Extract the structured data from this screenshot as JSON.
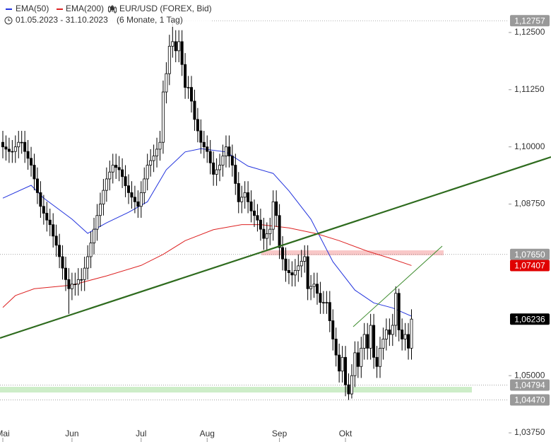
{
  "chart_data": {
    "type": "candlestick",
    "title": "EUR/USD (FOREX, Bid)",
    "period": "01.05.2023 - 31.10.2023",
    "subtitle": "(6 Monate, 1 Tag)",
    "up_color": "#ffffff",
    "down_color": "#000000",
    "xlim": [
      0,
      130
    ],
    "xticks": [
      {
        "value": 0,
        "label": "Mai"
      },
      {
        "value": 22,
        "label": "Jun"
      },
      {
        "value": 44,
        "label": "Jul"
      },
      {
        "value": 65,
        "label": "Aug"
      },
      {
        "value": 88,
        "label": "Sep"
      },
      {
        "value": 109,
        "label": "Okt"
      }
    ],
    "ylim": [
      1.0355,
      1.1321
    ],
    "yticks": [
      {
        "value": 1.125,
        "label": "1,12500"
      },
      {
        "value": 1.1125,
        "label": "1,11250"
      },
      {
        "value": 1.1,
        "label": "1,10000"
      },
      {
        "value": 1.0875,
        "label": "1,08750"
      },
      {
        "value": 1.05,
        "label": "1,05000"
      },
      {
        "value": 1.0375,
        "label": "1,03750"
      }
    ],
    "open": [
      1.101,
      1.1,
      1.0995,
      1.099,
      1.099,
      1.1,
      1.101,
      1.101,
      1.099,
      1.0975,
      1.096,
      1.093,
      1.09,
      1.087,
      1.0855,
      1.084,
      1.083,
      1.0805,
      1.0785,
      1.076,
      1.0735,
      1.071,
      1.069,
      1.07,
      1.07,
      1.071,
      1.071,
      1.0735,
      1.076,
      1.079,
      1.082,
      1.085,
      1.0875,
      1.0905,
      1.093,
      1.0945,
      1.096,
      1.0955,
      1.095,
      1.0935,
      1.0915,
      1.09,
      1.089,
      1.088,
      1.087,
      1.09,
      1.093,
      1.096,
      1.097,
      1.098,
      1.0995,
      1.101,
      1.112,
      1.116,
      1.122,
      1.123,
      1.121,
      1.123,
      1.118,
      1.113,
      1.113,
      1.11,
      1.106,
      1.1035,
      1.101,
      1.1,
      1.099,
      1.0965,
      1.094,
      1.095,
      1.096,
      1.098,
      1.1,
      1.098,
      1.096,
      1.092,
      1.088,
      1.089,
      1.09,
      1.088,
      1.086,
      1.085,
      1.084,
      1.082,
      1.08,
      1.081,
      1.082,
      1.088,
      1.085,
      1.078,
      1.0755,
      1.073,
      1.0725,
      1.072,
      1.073,
      1.074,
      1.075,
      1.076,
      1.069,
      1.0695,
      1.07,
      1.068,
      1.066,
      1.066,
      1.066,
      1.062,
      1.058,
      1.0545,
      1.051,
      1.054,
      1.048,
      1.046,
      1.05,
      1.055,
      1.052,
      1.056,
      1.059,
      1.056,
      1.061,
      1.054,
      1.052,
      1.056,
      1.058,
      1.06,
      1.059,
      1.061,
      1.068,
      1.06,
      1.058,
      1.059,
      1.056
    ],
    "high": [
      1.1035,
      1.1025,
      1.102,
      1.1015,
      1.1025,
      1.1035,
      1.1035,
      1.1035,
      1.1015,
      1.1,
      1.0985,
      1.0955,
      1.0925,
      1.0895,
      1.088,
      1.0865,
      1.0855,
      1.083,
      1.081,
      1.0785,
      1.076,
      1.0735,
      1.0725,
      1.0725,
      1.0735,
      1.0735,
      1.076,
      1.0785,
      1.0815,
      1.0845,
      1.0875,
      1.09,
      1.093,
      1.0955,
      1.097,
      1.0985,
      1.0985,
      1.098,
      1.0975,
      1.096,
      1.094,
      1.0925,
      1.0915,
      1.0905,
      1.0925,
      1.0955,
      1.0985,
      1.0995,
      1.1005,
      1.102,
      1.1035,
      1.1145,
      1.1185,
      1.1245,
      1.1276,
      1.1255,
      1.1255,
      1.1255,
      1.1205,
      1.1155,
      1.1155,
      1.1125,
      1.1085,
      1.106,
      1.1035,
      1.1025,
      1.1015,
      1.099,
      1.0975,
      1.0985,
      1.1005,
      1.1025,
      1.1025,
      1.1005,
      1.0985,
      1.0945,
      1.0915,
      1.0925,
      1.0925,
      1.0905,
      1.0885,
      1.0875,
      1.0865,
      1.0845,
      1.0835,
      1.0845,
      1.0905,
      1.0905,
      1.0875,
      1.0805,
      1.078,
      1.0755,
      1.075,
      1.0755,
      1.0765,
      1.0775,
      1.0785,
      1.0785,
      1.072,
      1.0725,
      1.0725,
      1.0705,
      1.0685,
      1.0685,
      1.0685,
      1.0645,
      1.0605,
      1.057,
      1.0565,
      1.0565,
      1.0505,
      1.0525,
      1.0575,
      1.0575,
      1.0585,
      1.0615,
      1.0615,
      1.0635,
      1.0635,
      1.0565,
      1.0585,
      1.0605,
      1.0625,
      1.0625,
      1.0635,
      1.0695,
      1.069,
      1.0625,
      1.0615,
      1.0615,
      1.0645
    ],
    "low": [
      1.0975,
      1.097,
      1.0965,
      1.0965,
      1.0965,
      1.0975,
      1.0985,
      1.0965,
      1.095,
      1.0935,
      1.0905,
      1.0875,
      1.0845,
      1.083,
      1.0815,
      1.0805,
      1.078,
      1.076,
      1.0735,
      1.071,
      1.0685,
      1.0635,
      1.0665,
      1.0675,
      1.0675,
      1.0685,
      1.0685,
      1.071,
      1.0735,
      1.0765,
      1.0795,
      1.0825,
      1.085,
      1.088,
      1.0905,
      1.092,
      1.093,
      1.0925,
      1.091,
      1.089,
      1.0875,
      1.0865,
      1.0855,
      1.0845,
      1.0845,
      1.0875,
      1.0905,
      1.0935,
      1.0945,
      1.0955,
      1.097,
      1.0985,
      1.1095,
      1.1135,
      1.1195,
      1.1185,
      1.1185,
      1.1155,
      1.1105,
      1.1105,
      1.1075,
      1.1035,
      1.101,
      1.0985,
      1.0975,
      1.0965,
      1.094,
      1.0915,
      1.0915,
      1.0925,
      1.0935,
      1.0955,
      1.0955,
      1.0935,
      1.0895,
      1.0855,
      1.0855,
      1.0865,
      1.0855,
      1.0835,
      1.0825,
      1.0815,
      1.0795,
      1.0775,
      1.0775,
      1.0785,
      1.0795,
      1.0825,
      1.0755,
      1.073,
      1.0705,
      1.07,
      1.0695,
      1.0695,
      1.0705,
      1.0715,
      1.0725,
      1.0665,
      1.0665,
      1.067,
      1.0655,
      1.0635,
      1.0635,
      1.0635,
      1.0595,
      1.0555,
      1.052,
      1.0485,
      1.0485,
      1.0455,
      1.0447,
      1.045,
      1.0475,
      1.0495,
      1.0495,
      1.0535,
      1.0535,
      1.0535,
      1.0515,
      1.0495,
      1.0495,
      1.0535,
      1.0555,
      1.0565,
      1.0565,
      1.0585,
      1.0575,
      1.0555,
      1.0555,
      1.0535,
      1.0535
    ],
    "close": [
      1.1,
      1.0995,
      1.099,
      1.099,
      1.1,
      1.101,
      1.101,
      1.099,
      1.0975,
      1.096,
      1.093,
      1.09,
      1.087,
      1.0855,
      1.084,
      1.083,
      1.0805,
      1.0785,
      1.076,
      1.0735,
      1.071,
      1.069,
      1.07,
      1.07,
      1.071,
      1.071,
      1.0735,
      1.076,
      1.079,
      1.082,
      1.085,
      1.0875,
      1.0905,
      1.093,
      1.0945,
      1.096,
      1.0955,
      1.095,
      1.0935,
      1.0915,
      1.09,
      1.089,
      1.088,
      1.087,
      1.09,
      1.093,
      1.096,
      1.097,
      1.098,
      1.0995,
      1.101,
      1.112,
      1.116,
      1.122,
      1.123,
      1.121,
      1.123,
      1.118,
      1.113,
      1.113,
      1.11,
      1.106,
      1.1035,
      1.101,
      1.1,
      1.099,
      1.0965,
      1.094,
      1.095,
      1.096,
      1.098,
      1.1,
      1.098,
      1.096,
      1.092,
      1.088,
      1.089,
      1.09,
      1.088,
      1.086,
      1.085,
      1.084,
      1.082,
      1.08,
      1.081,
      1.082,
      1.088,
      1.085,
      1.078,
      1.0755,
      1.073,
      1.0725,
      1.072,
      1.073,
      1.074,
      1.075,
      1.076,
      1.069,
      1.0695,
      1.07,
      1.068,
      1.066,
      1.066,
      1.066,
      1.062,
      1.058,
      1.0545,
      1.051,
      1.054,
      1.048,
      1.046,
      1.05,
      1.055,
      1.052,
      1.056,
      1.059,
      1.056,
      1.061,
      1.054,
      1.052,
      1.056,
      1.058,
      1.06,
      1.059,
      1.061,
      1.068,
      1.06,
      1.058,
      1.059,
      1.056,
      1.06236
    ],
    "series": [
      {
        "name": "EMA(50)",
        "color": "#2233dd",
        "x": [
          0,
          9,
          13,
          22,
          27,
          33,
          40,
          46,
          52,
          58,
          63,
          71,
          78,
          86,
          91,
          98,
          105,
          112,
          118,
          124,
          130
        ],
        "values": [
          1.0888,
          1.0916,
          1.0888,
          1.0842,
          1.0811,
          1.0834,
          1.0857,
          1.088,
          1.095,
          1.0989,
          1.0996,
          1.0989,
          1.0958,
          1.0942,
          1.0904,
          1.0842,
          1.0749,
          1.0687,
          1.0659,
          1.0648,
          1.063
        ]
      },
      {
        "name": "EMA(200)",
        "color": "#dd2222",
        "x": [
          0,
          4,
          10,
          22,
          33,
          44,
          51,
          58,
          67,
          76,
          82,
          91,
          100,
          107,
          116,
          123,
          130
        ],
        "values": [
          1.0649,
          1.0675,
          1.069,
          1.0698,
          1.0718,
          1.0741,
          1.0765,
          1.0795,
          1.0819,
          1.083,
          1.083,
          1.0823,
          1.081,
          1.0795,
          1.0772,
          1.0757,
          1.07407
        ]
      }
    ],
    "levels": [
      {
        "value": 1.12757,
        "label": "1,12757",
        "color": "#999999"
      },
      {
        "value": 1.0765,
        "label": "1,07650",
        "color": "#999999"
      },
      {
        "value": 1.07407,
        "label": "1,07407",
        "color": "#e00000"
      },
      {
        "value": 1.06236,
        "label": "1,06236",
        "color": "#000000"
      },
      {
        "value": 1.04794,
        "label": "1,04794",
        "color": "#999999"
      },
      {
        "value": 1.0447,
        "label": "1,04470",
        "color": "#999999"
      }
    ]
  }
}
